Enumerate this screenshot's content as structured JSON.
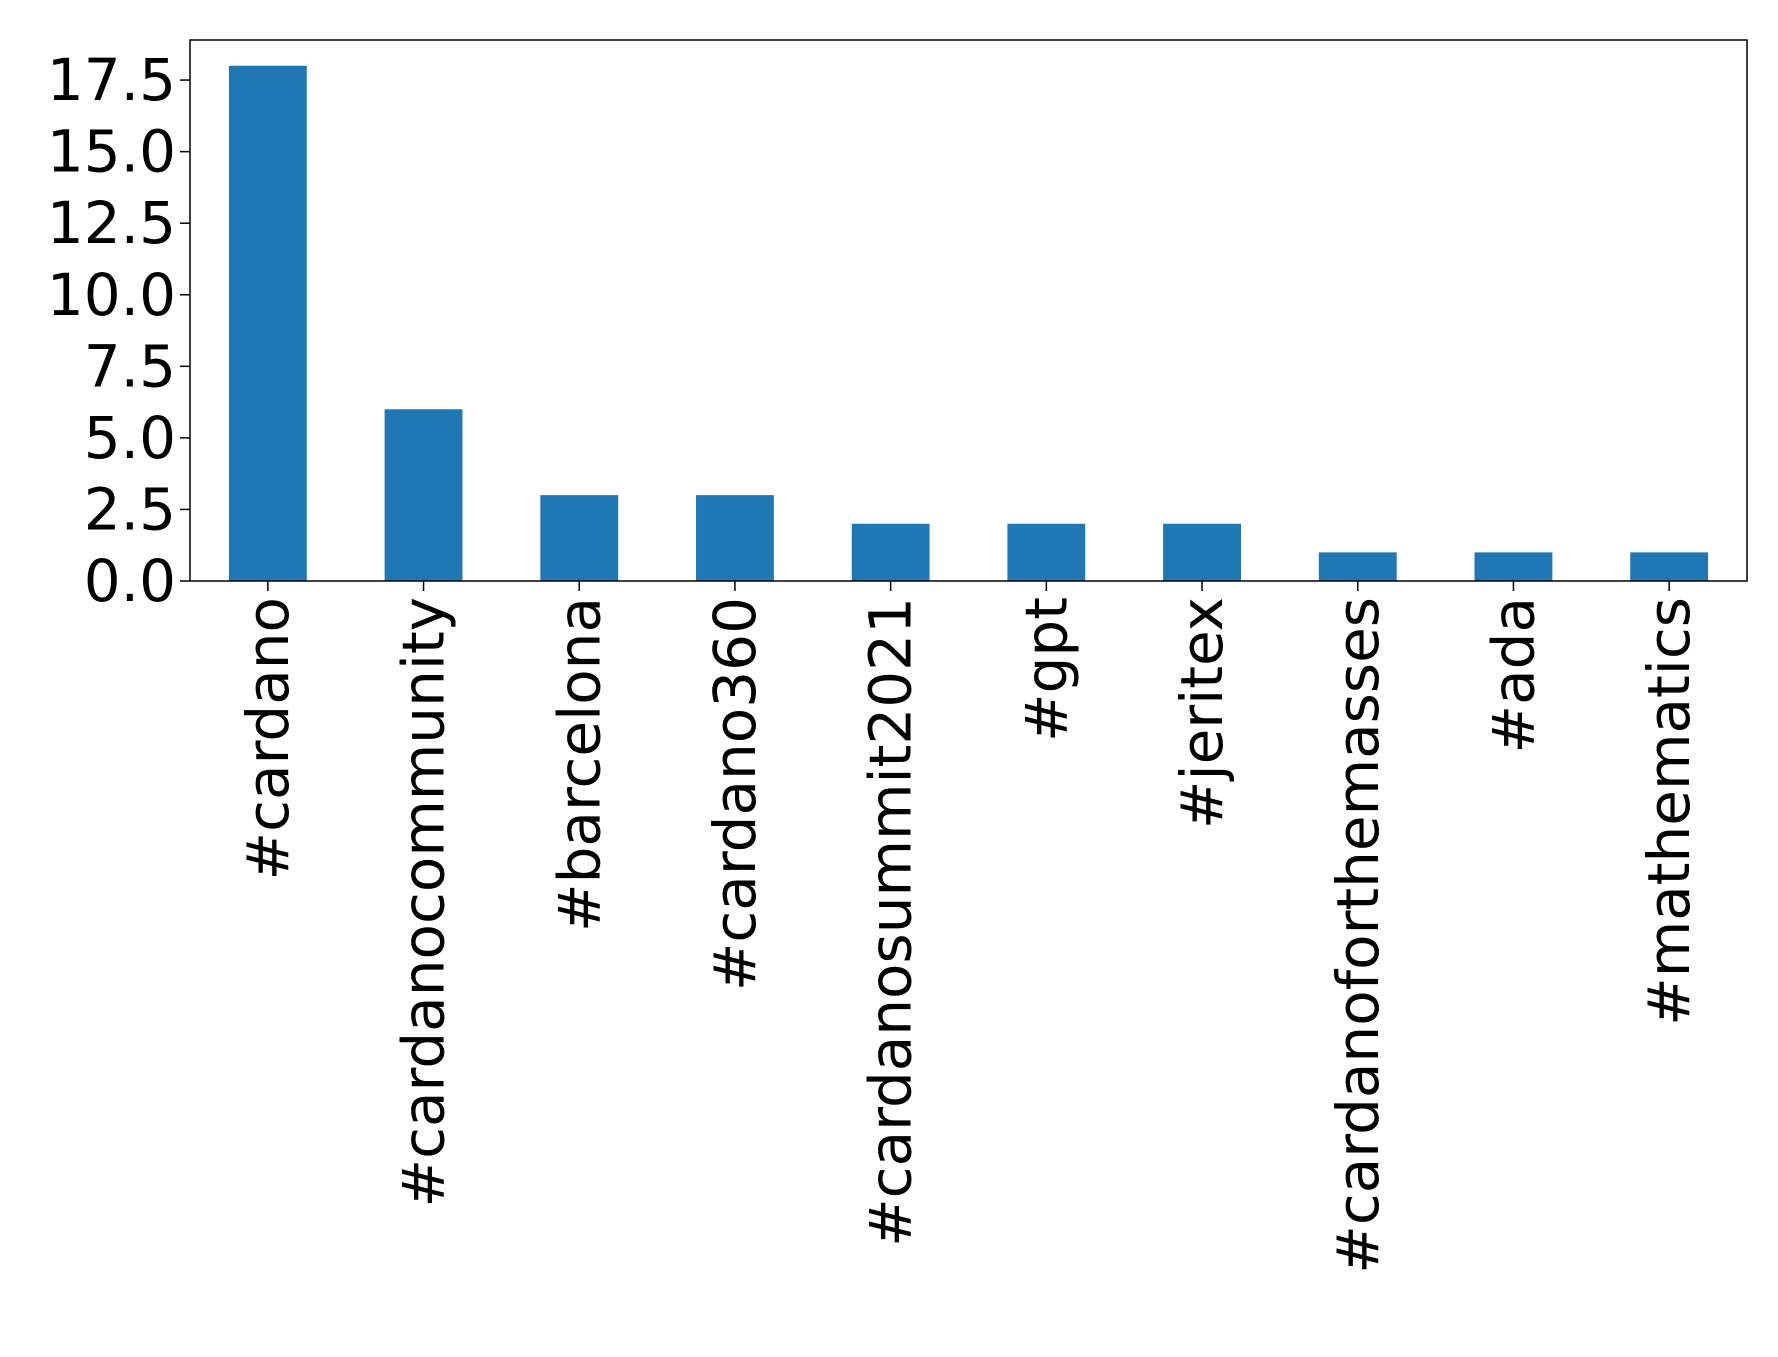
{
  "chart_data": {
    "type": "bar",
    "categories": [
      "#cardano",
      "#cardanocommunity",
      "#barcelona",
      "#cardano360",
      "#cardanosummit2021",
      "#gpt",
      "#jeritex",
      "#cardanoforthemasses",
      "#ada",
      "#mathematics"
    ],
    "values": [
      18,
      6,
      3,
      3,
      2,
      2,
      2,
      1,
      1,
      1
    ],
    "ylim": [
      0,
      18.9
    ],
    "yticks": [
      "0.0",
      "2.5",
      "5.0",
      "7.5",
      "10.0",
      "12.5",
      "15.0",
      "17.5"
    ],
    "ytick_values": [
      0,
      2.5,
      5,
      7.5,
      10,
      12.5,
      15,
      17.5
    ],
    "title": "",
    "xlabel": "",
    "ylabel": "",
    "bar_color": "#1f77b4",
    "grid": false,
    "legend": "none"
  }
}
